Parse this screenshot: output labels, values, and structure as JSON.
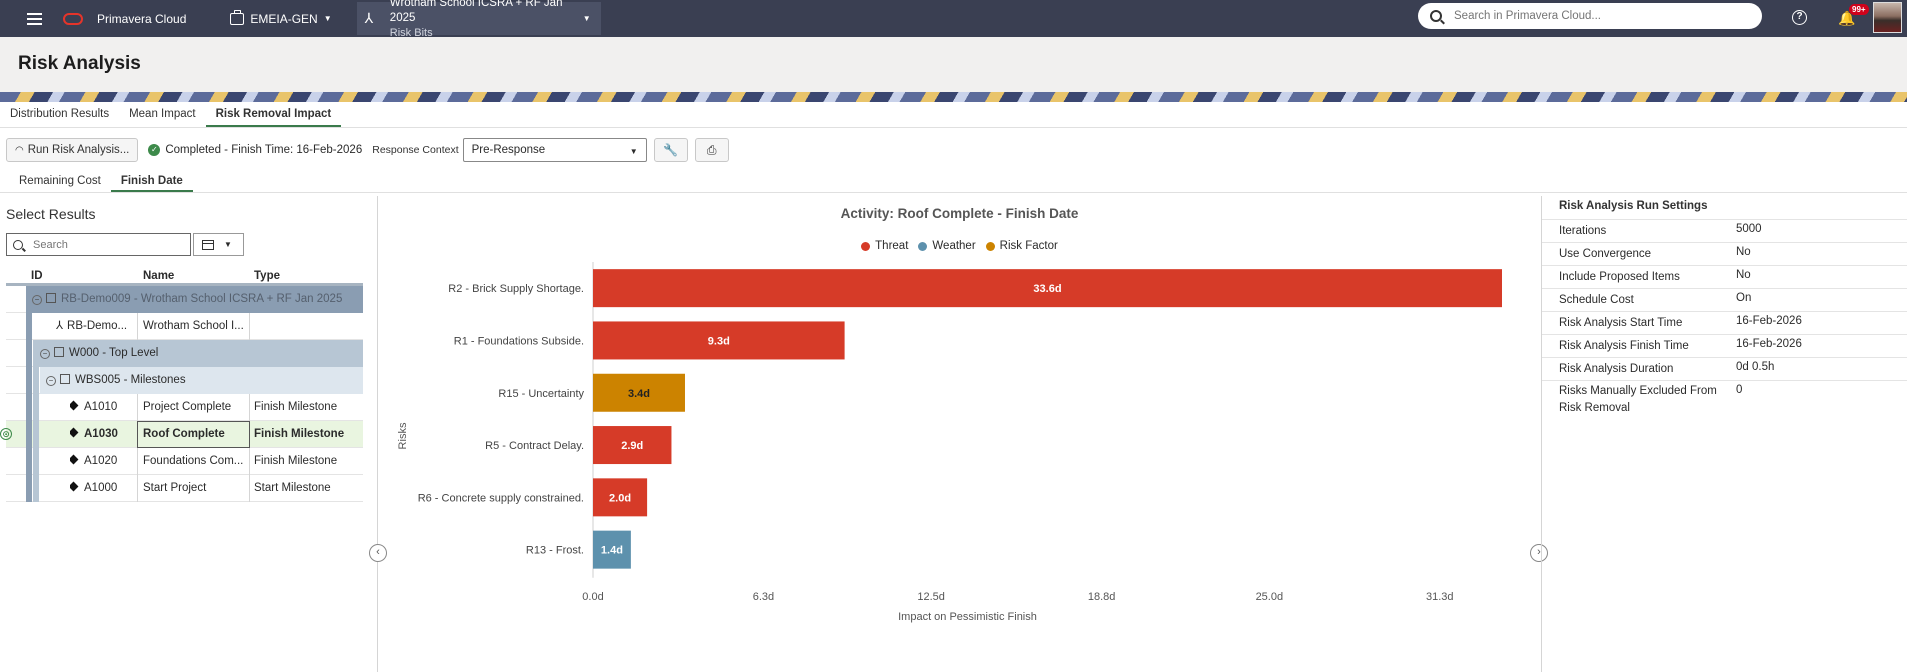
{
  "topbar": {
    "app_name": "Primavera Cloud",
    "workspace": "EMEIA-GEN",
    "project_name": "Wrotham School ICSRA + RF Jan 2025",
    "project_sub": "Risk Bits",
    "search_placeholder": "Search in Primavera Cloud...",
    "notifications_badge": "99+"
  },
  "page": {
    "title": "Risk Analysis"
  },
  "tabs": [
    "Distribution Results",
    "Mean Impact",
    "Risk Removal Impact"
  ],
  "toolbar": {
    "run_label": "Run Risk Analysis...",
    "status": "Completed - Finish Time: 16-Feb-2026",
    "response_context_label": "Response Context",
    "response_context_value": "Pre-Response"
  },
  "subtabs": [
    "Remaining Cost",
    "Finish Date"
  ],
  "left": {
    "title": "Select Results",
    "search_placeholder": "Search",
    "columns": [
      "ID",
      "Name",
      "Type"
    ],
    "rows": [
      {
        "kind": "group0",
        "text": "RB-Demo009 - Wrotham School ICSRA + RF Jan 2025"
      },
      {
        "kind": "project",
        "id": "RB-Demo...",
        "name": "Wrotham School I...",
        "type": ""
      },
      {
        "kind": "group1",
        "text": "W000 - Top Level"
      },
      {
        "kind": "group2",
        "text": "WBS005 - Milestones"
      },
      {
        "kind": "activity",
        "id": "A1010",
        "name": "Project Complete",
        "type": "Finish Milestone"
      },
      {
        "kind": "activity",
        "id": "A1030",
        "name": "Roof Complete",
        "type": "Finish Milestone",
        "selected": true
      },
      {
        "kind": "activity",
        "id": "A1020",
        "name": "Foundations Com...",
        "type": "Finish Milestone"
      },
      {
        "kind": "activity",
        "id": "A1000",
        "name": "Start Project",
        "type": "Start Milestone"
      }
    ]
  },
  "chart_data": {
    "type": "bar",
    "orientation": "horizontal",
    "title": "Activity: Roof Complete - Finish Date",
    "xlabel": "Impact on Pessimistic Finish",
    "ylabel": "Risks",
    "xlim": [
      0,
      33.6
    ],
    "xticks": [
      "0.0d",
      "6.3d",
      "12.5d",
      "18.8d",
      "25.0d",
      "31.3d"
    ],
    "xtick_values": [
      0,
      6.3,
      12.5,
      18.8,
      25.0,
      31.3
    ],
    "legend": [
      {
        "name": "Threat",
        "color": "#d63b28"
      },
      {
        "name": "Weather",
        "color": "#5d91ad"
      },
      {
        "name": "Risk Factor",
        "color": "#cc8300"
      }
    ],
    "bars": [
      {
        "label": "R2 - Brick Supply Shortage.",
        "value": 33.6,
        "text": "33.6d",
        "series": "Threat"
      },
      {
        "label": "R1 - Foundations Subside.",
        "value": 9.3,
        "text": "9.3d",
        "series": "Threat"
      },
      {
        "label": "R15 - Uncertainty",
        "value": 3.4,
        "text": "3.4d",
        "series": "Risk Factor"
      },
      {
        "label": "R5 - Contract Delay.",
        "value": 2.9,
        "text": "2.9d",
        "series": "Threat"
      },
      {
        "label": "R6 - Concrete supply constrained.",
        "value": 2.0,
        "text": "2.0d",
        "series": "Threat"
      },
      {
        "label": "R13 - Frost.",
        "value": 1.4,
        "text": "1.4d",
        "series": "Weather"
      }
    ]
  },
  "settings": {
    "title": "Risk Analysis Run Settings",
    "rows": [
      {
        "label": "Iterations",
        "value": "5000"
      },
      {
        "label": "Use Convergence",
        "value": "No"
      },
      {
        "label": "Include Proposed Items",
        "value": "No"
      },
      {
        "label": "Schedule Cost",
        "value": "On"
      },
      {
        "label": "Risk Analysis Start Time",
        "value": "16-Feb-2026"
      },
      {
        "label": "Risk Analysis Finish Time",
        "value": "16-Feb-2026"
      },
      {
        "label": "Risk Analysis Duration",
        "value": "0d 0.5h"
      },
      {
        "label": "Risks Manually Excluded From Risk Removal",
        "value": "0"
      }
    ]
  }
}
